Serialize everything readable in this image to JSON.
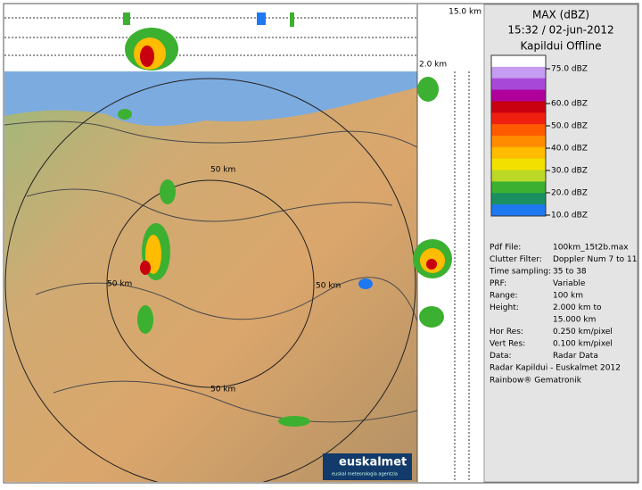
{
  "header": {
    "title": "MAX (dBZ)",
    "datetime": "15:32 / 02-jun-2012",
    "station": "Kapildui Offline"
  },
  "legend": {
    "colors": [
      "#ffffff",
      "#c49cf0",
      "#a848d8",
      "#b0009c",
      "#c80010",
      "#f02010",
      "#ff5a00",
      "#ff8c00",
      "#ffbc00",
      "#f2e000",
      "#bcd828",
      "#3cb030",
      "#1a9060",
      "#1e78f0"
    ],
    "labels": [
      "75.0 dBZ",
      "60.0 dBZ",
      "50.0 dBZ",
      "40.0 dBZ",
      "30.0 dBZ",
      "20.0 dBZ",
      "10.0 dBZ"
    ]
  },
  "info": {
    "rows": [
      [
        "Pdf File:",
        "100km_15t2b.max"
      ],
      [
        "Clutter Filter:",
        "Doppler Num 7 to 11"
      ],
      [
        "Time sampling:",
        "35 to 38"
      ],
      [
        "PRF:",
        "Variable"
      ],
      [
        "Range:",
        "100 km"
      ],
      [
        "Height:",
        "2.000 km to"
      ],
      [
        "",
        "15.000 km"
      ],
      [
        "Hor Res:",
        "0.250 km/pixel"
      ],
      [
        "Vert Res:",
        "0.100 km/pixel"
      ],
      [
        "Data:",
        "Radar Data"
      ]
    ],
    "footer": [
      "Radar Kapildui - Euskalmet 2012",
      "Rainbow® Gematronik"
    ]
  },
  "map": {
    "range_labels": [
      "50 km",
      "50 km",
      "50 km",
      "50 km"
    ],
    "top_height": "15.0 km",
    "low_height": "2.0 km",
    "logo": "euskalmet",
    "logo_sub": "euskal meteorologia agentzia"
  }
}
